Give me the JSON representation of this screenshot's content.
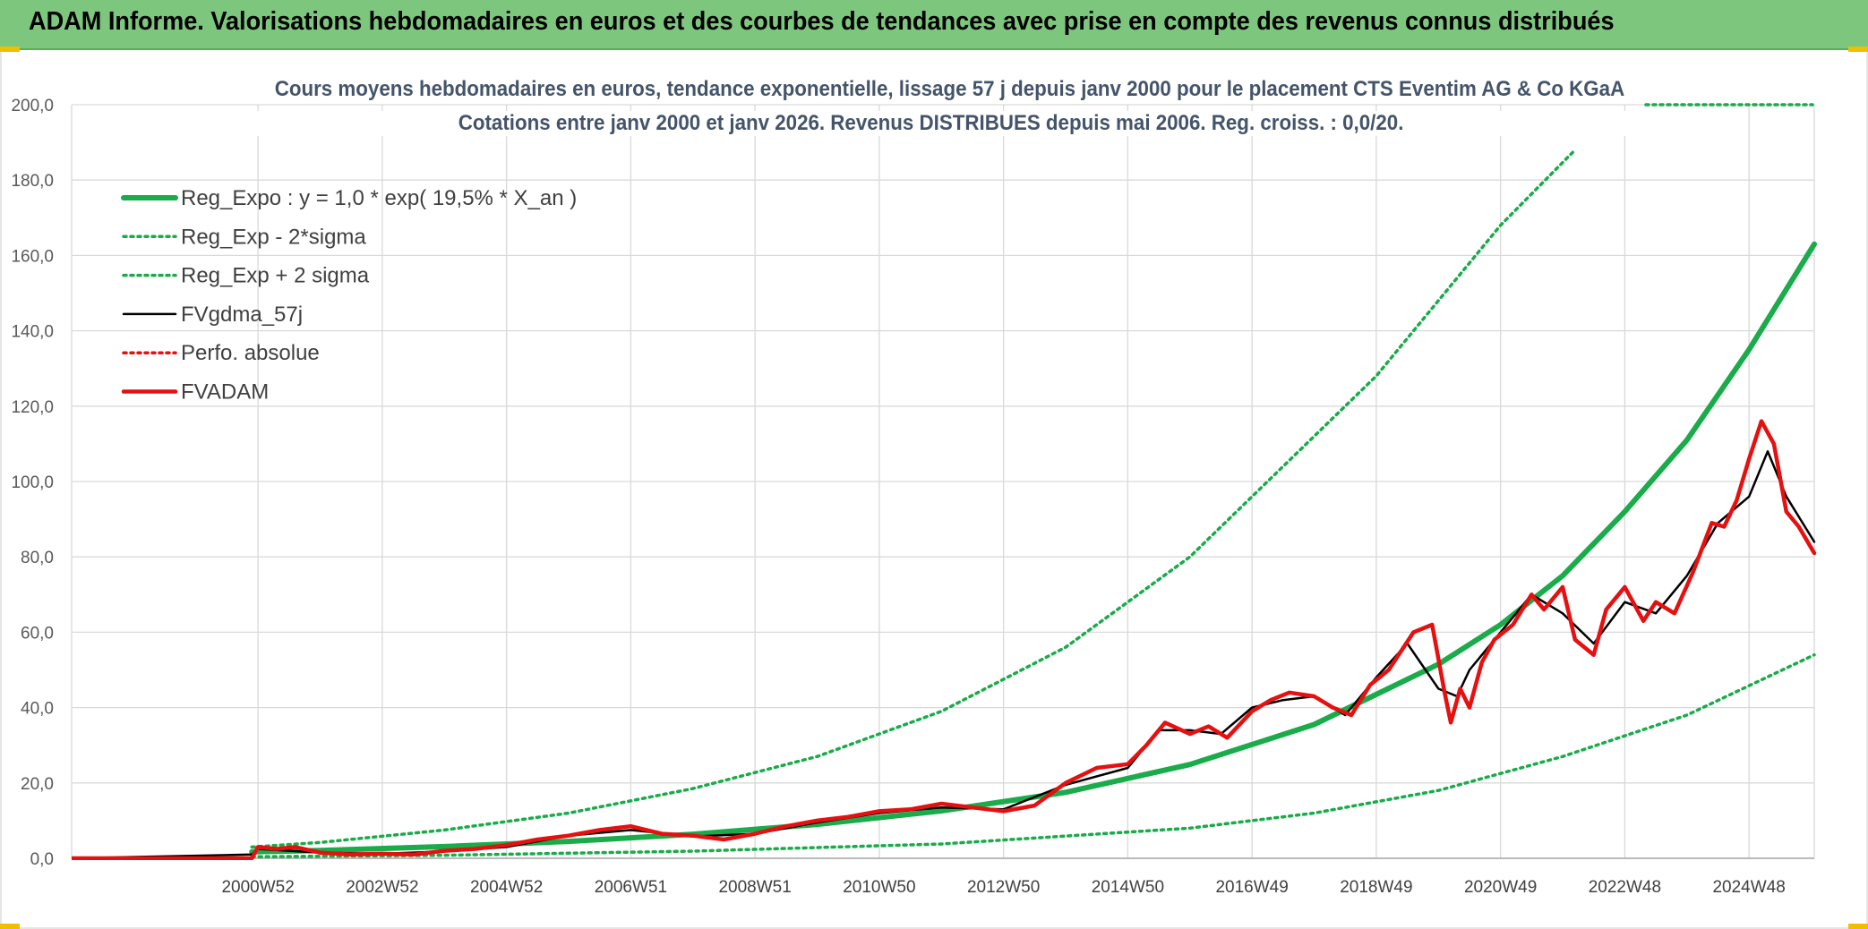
{
  "header": {
    "title": "ADAM Informe. Valorisations hebdomadaires en euros et des courbes de tendances avec prise en compte des revenus connus distribués"
  },
  "colors": {
    "header_bg": "#7dc67d",
    "accent_corner": "#f0c000",
    "title_text": "#44546a",
    "grid": "#d9d9d9",
    "reg_expo": "#1aab4a",
    "fvgdma": "#000000",
    "fvadam": "#e61010",
    "perfo": "#e61010"
  },
  "chart_data": {
    "type": "line",
    "title": "Cours moyens hebdomadaires en euros, tendance exponentielle, lissage 57 j depuis janv 2000 pour le placement CTS Eventim AG & Co KGaA",
    "subtitle": "Cotations entre janv 2000 et janv 2026. Revenus DISTRIBUES depuis mai 2006. Reg. croiss. : 0,0/20.",
    "xlabel": "",
    "ylabel": "",
    "ylim": [
      0,
      200
    ],
    "y_ticks": [
      "0,0",
      "20,0",
      "40,0",
      "60,0",
      "80,0",
      "100,0",
      "120,0",
      "140,0",
      "160,0",
      "180,0",
      "200,0"
    ],
    "xlim": [
      1998.0,
      2026.05
    ],
    "x_ticks": [
      {
        "label": "2000W52",
        "x": 2001.0
      },
      {
        "label": "2002W52",
        "x": 2003.0
      },
      {
        "label": "2004W52",
        "x": 2005.0
      },
      {
        "label": "2006W51",
        "x": 2007.0
      },
      {
        "label": "2008W51",
        "x": 2009.0
      },
      {
        "label": "2010W50",
        "x": 2011.0
      },
      {
        "label": "2012W50",
        "x": 2013.0
      },
      {
        "label": "2014W50",
        "x": 2015.0
      },
      {
        "label": "2016W49",
        "x": 2017.0
      },
      {
        "label": "2018W49",
        "x": 2019.0
      },
      {
        "label": "2020W49",
        "x": 2021.0
      },
      {
        "label": "2022W48",
        "x": 2023.0
      },
      {
        "label": "2024W48",
        "x": 2025.0
      }
    ],
    "grid": true,
    "legend_position": "top-left",
    "series": [
      {
        "name": "Reg_Expo : y = 1,0 * exp( 19,5% *  X_an )",
        "style": "solid-thick",
        "color": "#1aab4a",
        "x": [
          2000.9,
          2002,
          2004,
          2006,
          2008,
          2010,
          2012,
          2014,
          2016,
          2018,
          2020,
          2021,
          2022,
          2023,
          2024,
          2025,
          2026.05
        ],
        "y": [
          1.7,
          2.1,
          3.1,
          4.5,
          6.4,
          9.0,
          12.6,
          17.5,
          24.9,
          35.5,
          51.5,
          62.0,
          75.0,
          92.0,
          111.0,
          135.0,
          163.0
        ]
      },
      {
        "name": "Reg_Exp - 2*sigma",
        "style": "dotted",
        "color": "#1aab4a",
        "x": [
          2000.9,
          2004,
          2008,
          2012,
          2016,
          2018,
          2020,
          2022,
          2024,
          2026.05
        ],
        "y": [
          0.4,
          0.8,
          1.9,
          3.8,
          8.0,
          12.0,
          18.0,
          27.0,
          38.0,
          54.0
        ]
      },
      {
        "name": "Reg_Exp + 2 sigma",
        "style": "dotted",
        "color": "#1aab4a",
        "x": [
          2000.9,
          2002,
          2004,
          2006,
          2008,
          2010,
          2012,
          2014,
          2016,
          2018,
          2019,
          2020,
          2021,
          2022.2
        ],
        "y": [
          3.0,
          4.2,
          7.5,
          12.0,
          18.5,
          27.0,
          39.0,
          56.0,
          80.0,
          112.0,
          128.0,
          148.0,
          168.0,
          188.0
        ]
      },
      {
        "name": "FVgdma_57j",
        "style": "solid",
        "color": "#000000",
        "x": [
          1998.0,
          2000.9,
          2001,
          2001.5,
          2002,
          2003,
          2004,
          2005,
          2006,
          2007,
          2008,
          2009,
          2010,
          2011,
          2012,
          2013,
          2014,
          2015,
          2015.5,
          2016,
          2016.5,
          2017,
          2017.5,
          2018,
          2018.5,
          2019,
          2019.5,
          2020,
          2020.3,
          2020.5,
          2021,
          2021.5,
          2022,
          2022.5,
          2023,
          2023.5,
          2024,
          2024.5,
          2025,
          2025.3,
          2025.6,
          2026.05
        ],
        "y": [
          0.0,
          1.0,
          2.5,
          2.0,
          1.5,
          1.2,
          1.8,
          3.0,
          6.0,
          7.5,
          5.8,
          6.5,
          9.5,
          12.0,
          13.5,
          13.0,
          19.5,
          24.0,
          34.0,
          34.0,
          33.0,
          40.0,
          42.0,
          43.0,
          38.0,
          48.0,
          57.0,
          45.0,
          43.0,
          50.0,
          60.0,
          70.0,
          65.0,
          57.0,
          68.0,
          65.0,
          75.0,
          89.0,
          96.0,
          108.0,
          96.0,
          84.0
        ]
      },
      {
        "name": "Perfo. absolue",
        "style": "dotted",
        "color": "#e61010",
        "x": [],
        "y": []
      },
      {
        "name": "FVADAM",
        "style": "solid-thick",
        "color": "#e61010",
        "x": [
          1998.0,
          2000.9,
          2001.0,
          2001.3,
          2001.6,
          2002,
          2002.5,
          2003,
          2003.5,
          2004,
          2004.5,
          2005,
          2005.5,
          2006,
          2006.5,
          2007,
          2007.5,
          2008,
          2008.5,
          2009,
          2009.5,
          2010,
          2010.5,
          2011,
          2011.5,
          2012,
          2012.5,
          2013,
          2013.5,
          2014,
          2014.5,
          2015,
          2015.3,
          2015.6,
          2016,
          2016.3,
          2016.6,
          2017,
          2017.3,
          2017.6,
          2018,
          2018.3,
          2018.6,
          2018.9,
          2019.2,
          2019.6,
          2019.9,
          2020.1,
          2020.2,
          2020.35,
          2020.5,
          2020.7,
          2020.9,
          2021.2,
          2021.5,
          2021.7,
          2022.0,
          2022.2,
          2022.5,
          2022.7,
          2023.0,
          2023.3,
          2023.5,
          2023.8,
          2024.1,
          2024.4,
          2024.6,
          2024.8,
          2025.0,
          2025.2,
          2025.4,
          2025.6,
          2025.8,
          2026.05
        ],
        "y": [
          0.0,
          0.0,
          3.0,
          2.5,
          3.0,
          1.5,
          1.0,
          1.2,
          1.0,
          2.0,
          2.5,
          3.5,
          5.0,
          6.0,
          7.5,
          8.5,
          6.5,
          6.0,
          5.0,
          6.5,
          8.5,
          10.0,
          11.0,
          12.5,
          13.0,
          14.5,
          13.5,
          12.5,
          14.0,
          20.0,
          24.0,
          25.0,
          30.0,
          36.0,
          33.0,
          35.0,
          32.0,
          39.0,
          42.0,
          44.0,
          43.0,
          40.0,
          38.0,
          46.0,
          50.0,
          60.0,
          62.0,
          44.0,
          36.0,
          45.0,
          40.0,
          52.0,
          58.0,
          62.0,
          70.0,
          66.0,
          72.0,
          58.0,
          54.0,
          66.0,
          72.0,
          63.0,
          68.0,
          65.0,
          76.0,
          89.0,
          88.0,
          95.0,
          106.0,
          116.0,
          110.0,
          92.0,
          88.0,
          81.0
        ]
      }
    ]
  }
}
